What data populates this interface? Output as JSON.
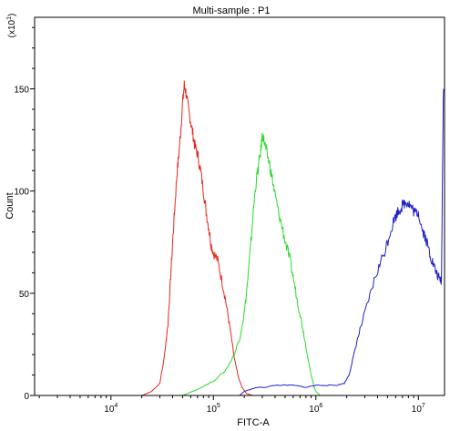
{
  "chart_data": {
    "type": "line",
    "title": "Multi-sample : P1",
    "xlabel": "FITC-A",
    "ylabel": "Count",
    "y_multiplier_label": "(x10",
    "y_multiplier_exp": "1",
    "y_multiplier_close": ")",
    "x_scale": "log",
    "xlim": [
      1800,
      18000000
    ],
    "ylim": [
      0,
      185
    ],
    "y_ticks": [
      0,
      50,
      100,
      150
    ],
    "x_ticks": [
      {
        "value": 10000,
        "base": "10",
        "exp": "4"
      },
      {
        "value": 100000,
        "base": "10",
        "exp": "5"
      },
      {
        "value": 1000000,
        "base": "10",
        "exp": "6"
      },
      {
        "value": 10000000,
        "base": "10",
        "exp": "7"
      }
    ],
    "grid": false,
    "legend": "none",
    "series": [
      {
        "color": "#e8261c",
        "points": [
          [
            20000,
            0
          ],
          [
            25000,
            2
          ],
          [
            30000,
            6
          ],
          [
            33000,
            18
          ],
          [
            36000,
            35
          ],
          [
            38000,
            55
          ],
          [
            40000,
            75
          ],
          [
            42000,
            92
          ],
          [
            44000,
            108
          ],
          [
            46000,
            118
          ],
          [
            48000,
            130
          ],
          [
            50000,
            143
          ],
          [
            52000,
            152
          ],
          [
            54000,
            148
          ],
          [
            57000,
            140
          ],
          [
            60000,
            134
          ],
          [
            63000,
            128
          ],
          [
            66000,
            122
          ],
          [
            70000,
            118
          ],
          [
            75000,
            110
          ],
          [
            80000,
            100
          ],
          [
            85000,
            90
          ],
          [
            90000,
            82
          ],
          [
            95000,
            74
          ],
          [
            100000,
            70
          ],
          [
            110000,
            66
          ],
          [
            120000,
            57
          ],
          [
            130000,
            48
          ],
          [
            140000,
            38
          ],
          [
            150000,
            28
          ],
          [
            160000,
            18
          ],
          [
            175000,
            9
          ],
          [
            190000,
            4
          ],
          [
            210000,
            1
          ],
          [
            240000,
            0
          ]
        ]
      },
      {
        "color": "#2cd92c",
        "points": [
          [
            50000,
            0
          ],
          [
            70000,
            3
          ],
          [
            100000,
            7
          ],
          [
            130000,
            12
          ],
          [
            160000,
            20
          ],
          [
            180000,
            28
          ],
          [
            200000,
            40
          ],
          [
            215000,
            55
          ],
          [
            230000,
            72
          ],
          [
            245000,
            90
          ],
          [
            260000,
            104
          ],
          [
            275000,
            112
          ],
          [
            290000,
            120
          ],
          [
            300000,
            128
          ],
          [
            315000,
            124
          ],
          [
            330000,
            119
          ],
          [
            350000,
            114
          ],
          [
            375000,
            106
          ],
          [
            400000,
            98
          ],
          [
            430000,
            90
          ],
          [
            470000,
            82
          ],
          [
            510000,
            74
          ],
          [
            560000,
            66
          ],
          [
            600000,
            58
          ],
          [
            650000,
            48
          ],
          [
            700000,
            40
          ],
          [
            750000,
            32
          ],
          [
            800000,
            24
          ],
          [
            850000,
            16
          ],
          [
            900000,
            10
          ],
          [
            950000,
            5
          ],
          [
            1000000,
            2
          ],
          [
            1100000,
            0
          ]
        ]
      },
      {
        "color": "#2020c8",
        "points": [
          [
            180000,
            0
          ],
          [
            200000,
            2
          ],
          [
            230000,
            3
          ],
          [
            270000,
            4
          ],
          [
            320000,
            4
          ],
          [
            400000,
            5
          ],
          [
            500000,
            5
          ],
          [
            600000,
            5
          ],
          [
            800000,
            4
          ],
          [
            1000000,
            5
          ],
          [
            1300000,
            5
          ],
          [
            1600000,
            5
          ],
          [
            1900000,
            6
          ],
          [
            2100000,
            10
          ],
          [
            2300000,
            18
          ],
          [
            2500000,
            26
          ],
          [
            2800000,
            35
          ],
          [
            3200000,
            45
          ],
          [
            3700000,
            56
          ],
          [
            4200000,
            64
          ],
          [
            4800000,
            72
          ],
          [
            5300000,
            80
          ],
          [
            5800000,
            86
          ],
          [
            6300000,
            90
          ],
          [
            6800000,
            92
          ],
          [
            7300000,
            94
          ],
          [
            7800000,
            95
          ],
          [
            8300000,
            93
          ],
          [
            8800000,
            91
          ],
          [
            9400000,
            89
          ],
          [
            10000000,
            90
          ],
          [
            10800000,
            82
          ],
          [
            11600000,
            78
          ],
          [
            12400000,
            73
          ],
          [
            13200000,
            68
          ],
          [
            14000000,
            64
          ],
          [
            15000000,
            60
          ],
          [
            16000000,
            57
          ],
          [
            16800000,
            56
          ],
          [
            17500000,
            148
          ],
          [
            17700000,
            150
          ]
        ]
      }
    ]
  }
}
